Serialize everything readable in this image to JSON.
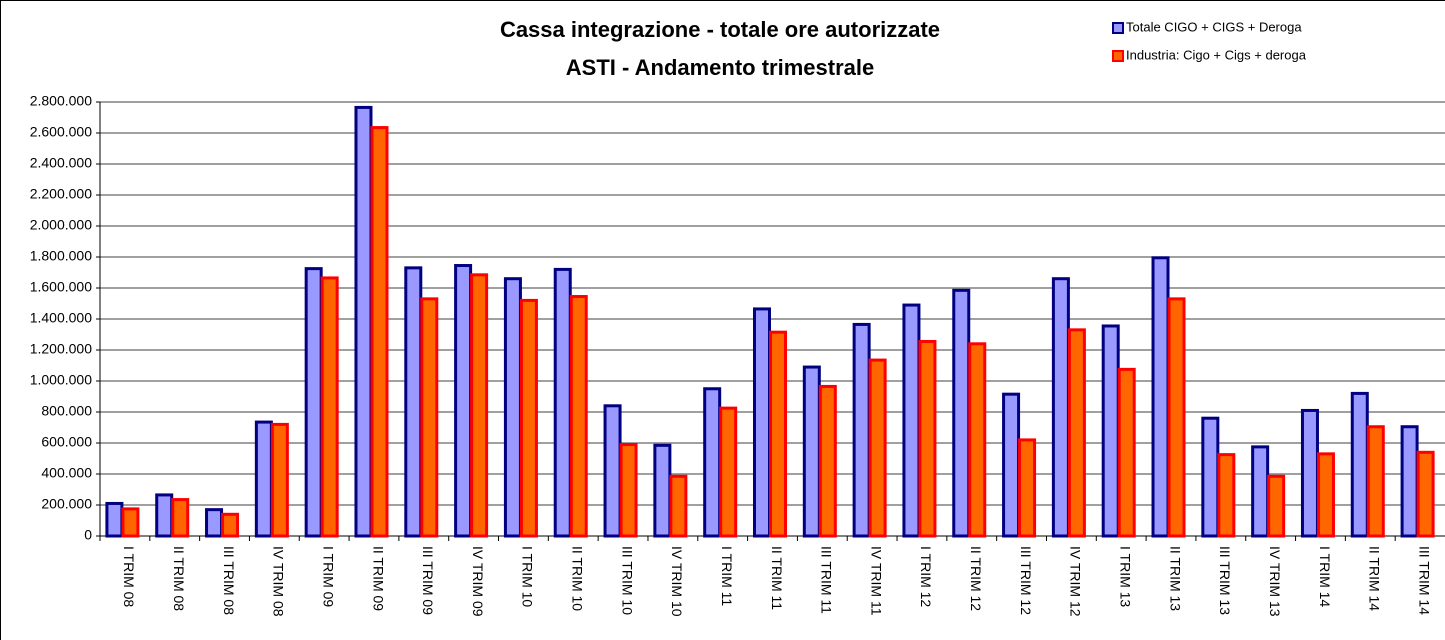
{
  "chart_data": {
    "type": "bar",
    "title": "Cassa integrazione - totale ore autorizzate",
    "subtitle": "ASTI - Andamento trimestrale",
    "categories": [
      "I TRIM 08",
      "II TRIM 08",
      "III TRIM 08",
      "IV TRIM 08",
      "I TRIM 09",
      "II TRIM 09",
      "III TRIM 09",
      "IV TRIM 09",
      "I TRIM 10",
      "II TRIM 10",
      "III TRIM 10",
      "IV TRIM 10",
      "I TRIM 11",
      "II TRIM 11",
      "III TRIM 11",
      "IV TRIM 11",
      "I TRIM 12",
      "II TRIM 12",
      "III TRIM 12",
      "IV TRIM 12",
      "I TRIM 13",
      "II TRIM 13",
      "III TRIM 13",
      "IV TRIM 13",
      "I TRIM 14",
      "II TRIM 14",
      "III TRIM 14"
    ],
    "series": [
      {
        "name": "Totale CIGO + CIGS + Deroga",
        "color": "#9999ff",
        "border": "#000080",
        "values": [
          210000,
          265000,
          170000,
          735000,
          1725000,
          2765000,
          1730000,
          1745000,
          1660000,
          1720000,
          840000,
          585000,
          950000,
          1465000,
          1090000,
          1365000,
          1490000,
          1585000,
          915000,
          1660000,
          1355000,
          1795000,
          760000,
          575000,
          810000,
          920000,
          705000
        ]
      },
      {
        "name": "Industria: Cigo + Cigs + deroga",
        "color": "#ff6600",
        "border": "#ff0000",
        "values": [
          175000,
          235000,
          140000,
          720000,
          1665000,
          2635000,
          1530000,
          1685000,
          1520000,
          1545000,
          590000,
          385000,
          825000,
          1315000,
          965000,
          1135000,
          1255000,
          1240000,
          620000,
          1330000,
          1075000,
          1530000,
          525000,
          385000,
          530000,
          705000,
          540000
        ]
      }
    ],
    "ylim": [
      0,
      2800000
    ],
    "yticks": [
      0,
      {
        "value": 200000,
        "label": "200.000"
      },
      {
        "value": 400000,
        "label": "400.000"
      },
      {
        "value": 600000,
        "label": "600.000"
      },
      {
        "value": 800000,
        "label": "800.000"
      },
      {
        "value": 1000000,
        "label": "1.000.000"
      },
      {
        "value": 1200000,
        "label": "1.200.000"
      },
      {
        "value": 1400000,
        "label": "1.400.000"
      },
      {
        "value": 1600000,
        "label": "1.600.000"
      },
      {
        "value": 1800000,
        "label": "1.800.000"
      },
      {
        "value": 2000000,
        "label": "2.000.000"
      },
      {
        "value": 2200000,
        "label": "2.200.000"
      },
      {
        "value": 2400000,
        "label": "2.400.000"
      },
      {
        "value": 2600000,
        "label": "2.600.000"
      },
      {
        "value": 2800000,
        "label": "2.800.000"
      }
    ],
    "grid": true
  }
}
